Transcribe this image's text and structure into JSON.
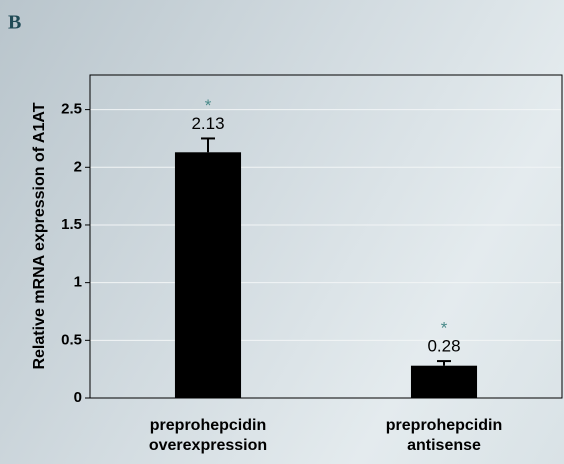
{
  "chart_data": {
    "type": "bar",
    "panel_label": "B",
    "y_label": "Relative mRNA expression of A1AT",
    "categories": [
      "preprohepcidin overexpression",
      "preprohepcidin antisense"
    ],
    "values": [
      2.13,
      0.28
    ],
    "errors": [
      0.12,
      0.04
    ],
    "annotations": [
      "*",
      "*"
    ],
    "color": "#000000",
    "annotation_color": "#4a8a8a",
    "ylim": [
      0,
      2.8
    ],
    "yticks": [
      0,
      0.5,
      1,
      1.5,
      2,
      2.5
    ],
    "grid": true
  }
}
